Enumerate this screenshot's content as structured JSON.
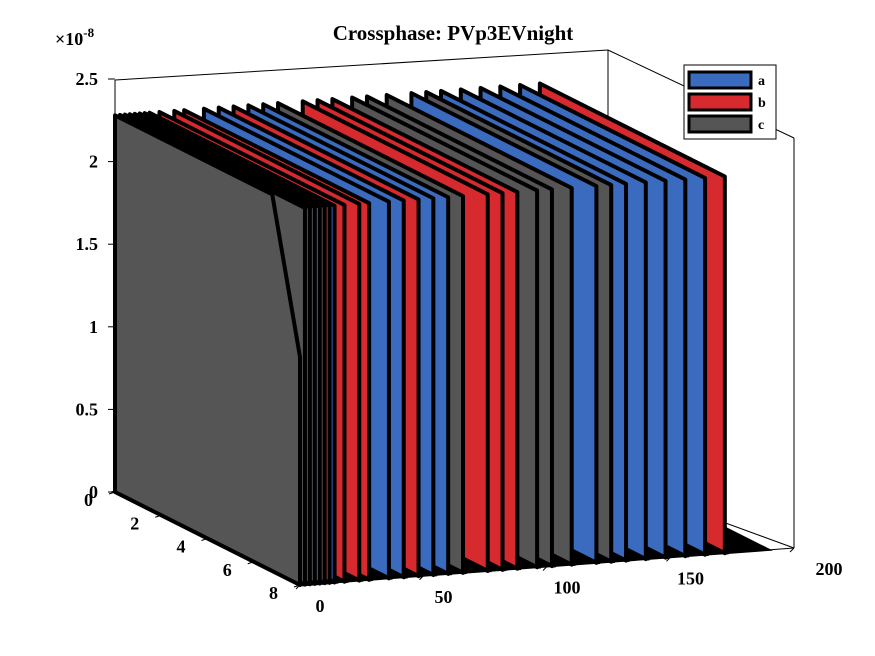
{
  "chart_data": {
    "type": "3d-waterfall",
    "title": "Crossphase: PVp3EVnight",
    "exponent_label": "×10",
    "exponent_power": "-8",
    "z_scale": 1e-08,
    "xlabel": "",
    "ylabel": "",
    "zlabel": "",
    "x_ticks": [
      "0",
      "50",
      "100",
      "150",
      "200"
    ],
    "x_tick_values": [
      0,
      50,
      100,
      150,
      200
    ],
    "y_ticks": [
      "0",
      "2",
      "4",
      "6",
      "8"
    ],
    "y_tick_values": [
      0,
      2,
      4,
      6,
      8
    ],
    "z_ticks": [
      "0",
      "0.5",
      "1",
      "1.5",
      "2",
      "2.5"
    ],
    "z_tick_values": [
      0,
      0.5,
      1,
      1.5,
      2,
      2.5
    ],
    "xlim": [
      0,
      200
    ],
    "ylim": [
      0,
      8
    ],
    "zlim": [
      0,
      2.5
    ],
    "grid": false,
    "legend_position": "top-right",
    "legend": [
      {
        "name": "a",
        "color": "#3a6bbf"
      },
      {
        "name": "b",
        "color": "#d62a2f"
      },
      {
        "name": "c",
        "color": "#555555"
      }
    ],
    "series_colors": {
      "a": "#3a6bbf",
      "b": "#d62a2f",
      "c": "#555555"
    },
    "slices": [
      {
        "x": 0,
        "series": "c",
        "z_start": 1.38,
        "z_plateau": 2.28,
        "x_end": 175
      },
      {
        "x": 2,
        "series": "c",
        "z_start": 2.28,
        "z_plateau": 2.28,
        "x_end": 175
      },
      {
        "x": 4,
        "series": "c",
        "z_start": 2.28,
        "z_plateau": 2.28,
        "x_end": 175
      },
      {
        "x": 6,
        "series": "c",
        "z_start": 2.28,
        "z_plateau": 2.28,
        "x_end": 175
      },
      {
        "x": 8,
        "series": "a",
        "z_start": 2.28,
        "z_plateau": 2.28,
        "x_end": 175
      },
      {
        "x": 10,
        "series": "c",
        "z_start": 2.28,
        "z_plateau": 2.28,
        "x_end": 175
      },
      {
        "x": 12,
        "series": "b",
        "z_start": 2.28,
        "z_plateau": 2.28,
        "x_end": 175
      },
      {
        "x": 14,
        "series": "a",
        "z_start": 2.28,
        "z_plateau": 2.28,
        "x_end": 175
      },
      {
        "x": 18,
        "series": "b",
        "z_start": 2.28,
        "z_plateau": 2.28,
        "x_end": 175
      },
      {
        "x": 24,
        "series": "b",
        "z_start": 2.28,
        "z_plateau": 2.28,
        "x_end": 175
      },
      {
        "x": 28,
        "series": "b",
        "z_start": 2.28,
        "z_plateau": 2.28,
        "x_end": 175
      },
      {
        "x": 36,
        "series": "a",
        "z_start": 2.28,
        "z_plateau": 2.28,
        "x_end": 175
      },
      {
        "x": 42,
        "series": "a",
        "z_start": 2.28,
        "z_plateau": 2.28,
        "x_end": 175
      },
      {
        "x": 48,
        "series": "b",
        "z_start": 2.28,
        "z_plateau": 2.28,
        "x_end": 175
      },
      {
        "x": 54,
        "series": "a",
        "z_start": 2.28,
        "z_plateau": 2.28,
        "x_end": 175
      },
      {
        "x": 60,
        "series": "a",
        "z_start": 2.28,
        "z_plateau": 2.28,
        "x_end": 175
      },
      {
        "x": 66,
        "series": "c",
        "z_start": 2.28,
        "z_plateau": 2.28,
        "x_end": 175
      },
      {
        "x": 76,
        "series": "b",
        "z_start": 2.28,
        "z_plateau": 2.28,
        "x_end": 175
      },
      {
        "x": 82,
        "series": "b",
        "z_start": 2.28,
        "z_plateau": 2.28,
        "x_end": 175
      },
      {
        "x": 88,
        "series": "b",
        "z_start": 2.28,
        "z_plateau": 2.28,
        "x_end": 175
      },
      {
        "x": 96,
        "series": "c",
        "z_start": 2.28,
        "z_plateau": 2.28,
        "x_end": 175
      },
      {
        "x": 102,
        "series": "c",
        "z_start": 2.28,
        "z_plateau": 2.28,
        "x_end": 175
      },
      {
        "x": 110,
        "series": "c",
        "z_start": 2.28,
        "z_plateau": 2.28,
        "x_end": 175
      },
      {
        "x": 120,
        "series": "a",
        "z_start": 2.28,
        "z_plateau": 2.28,
        "x_end": 175
      },
      {
        "x": 126,
        "series": "c",
        "z_start": 2.28,
        "z_plateau": 2.28,
        "x_end": 175
      },
      {
        "x": 132,
        "series": "a",
        "z_start": 2.28,
        "z_plateau": 2.28,
        "x_end": 175
      },
      {
        "x": 140,
        "series": "a",
        "z_start": 2.28,
        "z_plateau": 2.28,
        "x_end": 175
      },
      {
        "x": 148,
        "series": "a",
        "z_start": 2.28,
        "z_plateau": 2.28,
        "x_end": 175
      },
      {
        "x": 156,
        "series": "a",
        "z_start": 2.28,
        "z_plateau": 2.28,
        "x_end": 175
      },
      {
        "x": 164,
        "series": "a",
        "z_start": 2.28,
        "z_plateau": 2.28,
        "x_end": 175
      },
      {
        "x": 172,
        "series": "b",
        "z_start": 2.28,
        "z_plateau": 2.28,
        "x_end": 175
      }
    ]
  }
}
